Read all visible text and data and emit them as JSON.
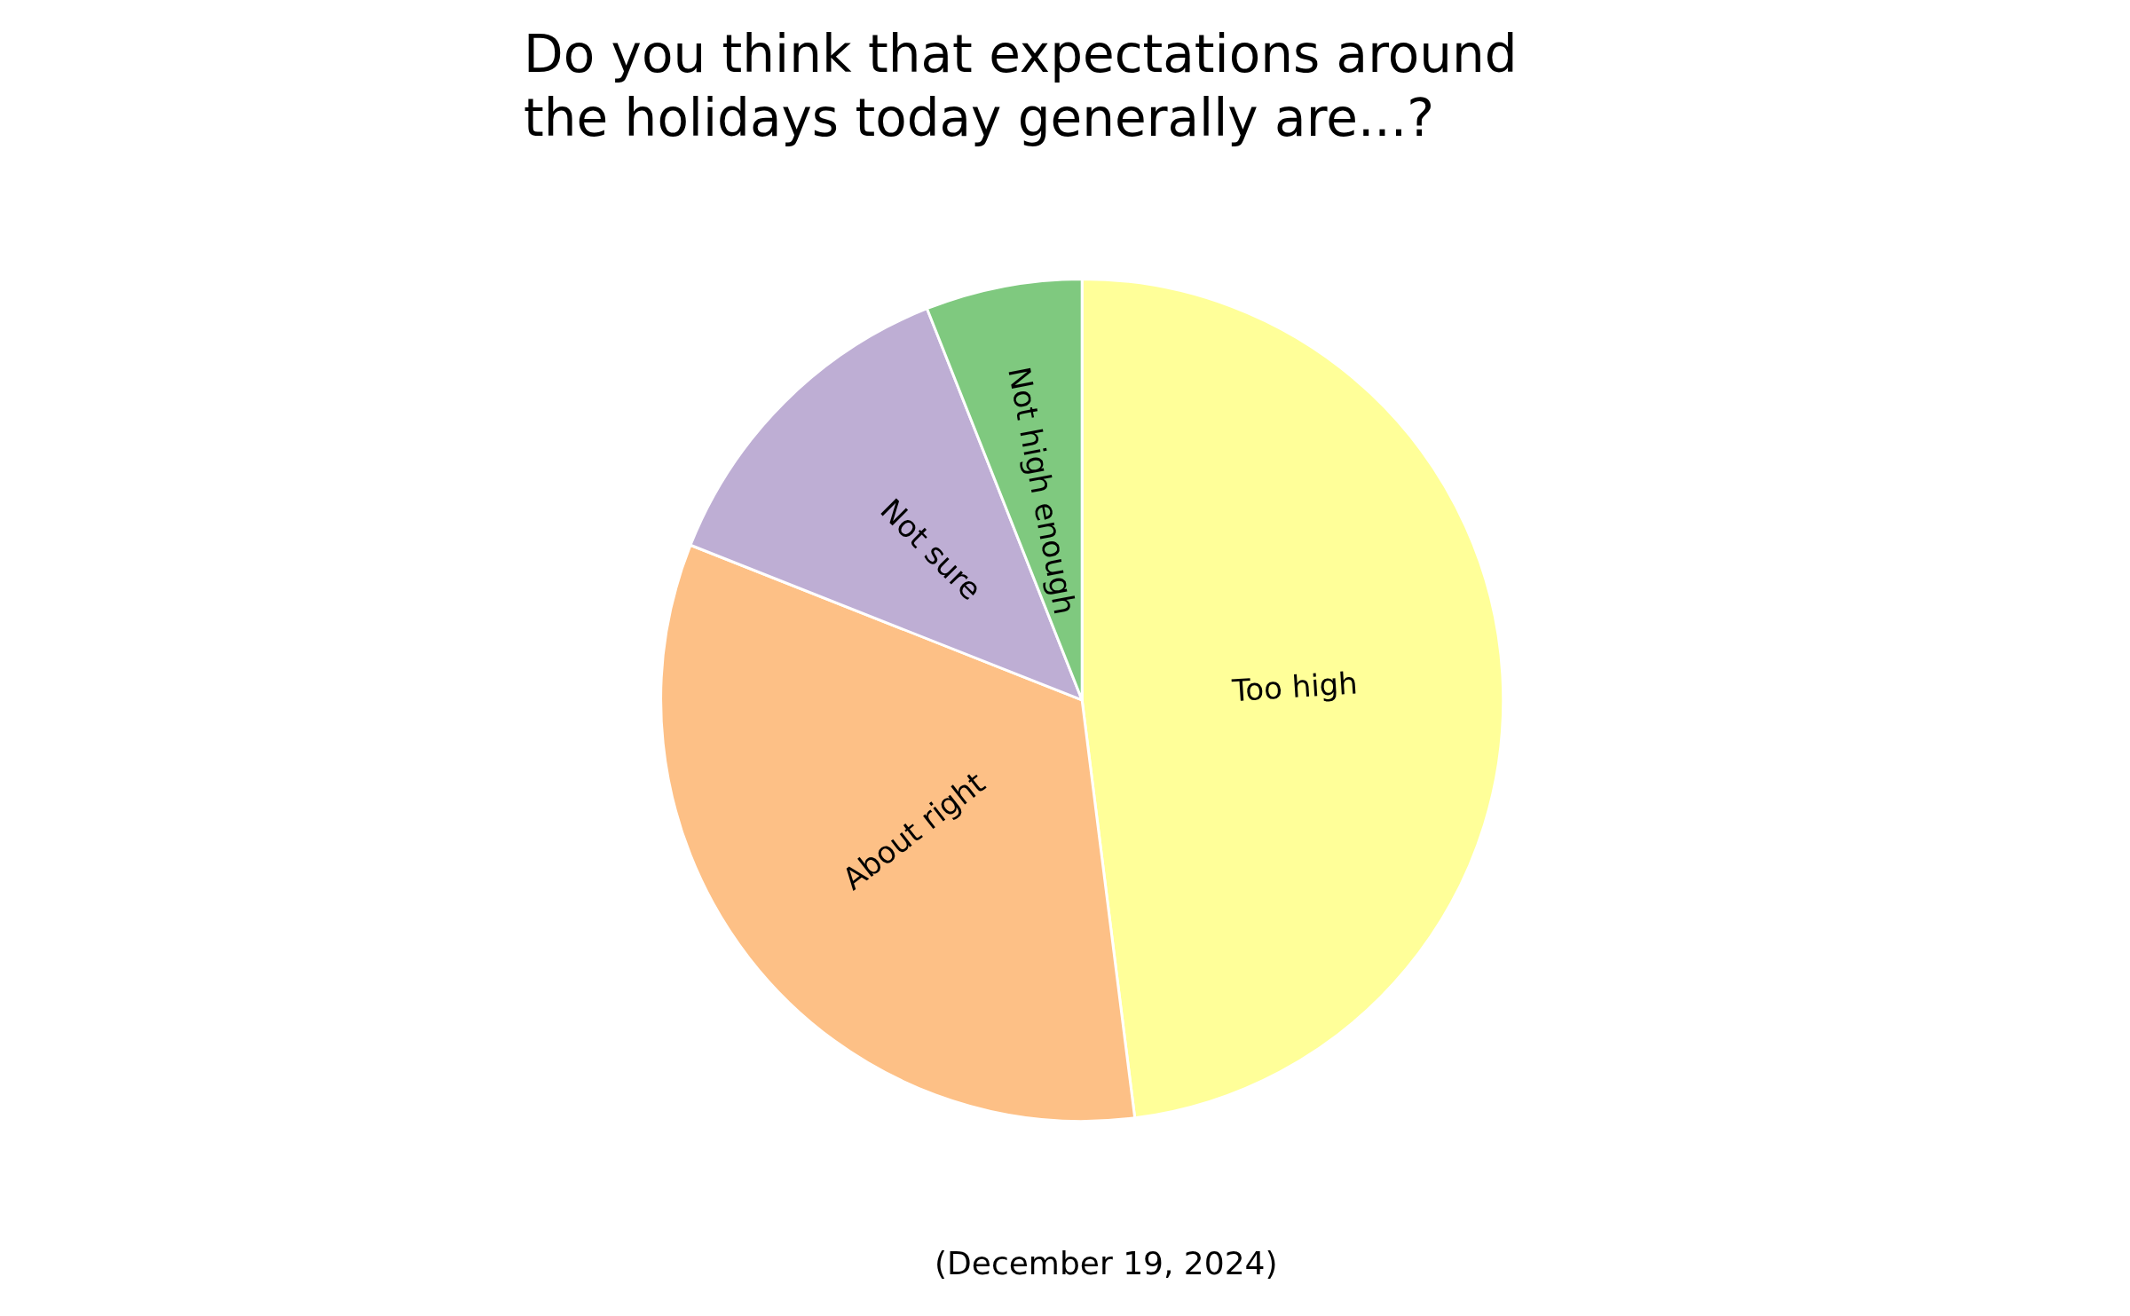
{
  "chart_data": {
    "type": "pie",
    "title": "Do you think that expectations around\nthe holidays today generally are...?",
    "categories": [
      "Too high",
      "About right",
      "Not sure",
      "Not high enough"
    ],
    "values": [
      48,
      33,
      13,
      6
    ],
    "colors": [
      "#ffff99",
      "#fdc086",
      "#beaed4",
      "#7fc97f"
    ],
    "legend": false,
    "annotations": [
      "(December 19, 2024)"
    ]
  }
}
